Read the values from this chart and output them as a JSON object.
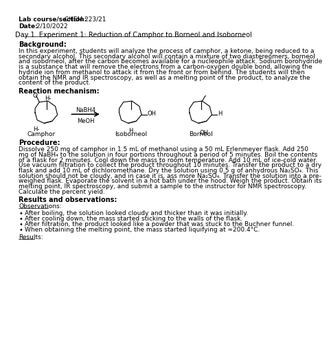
{
  "background_color": "#ffffff",
  "header_bold_label1": "Lab course/section:",
  "header_value1": " CHEM 223/21",
  "header_bold_label2": "Date:",
  "header_value2": " 2/10/2022",
  "title": "Day 1. Experiment 1: Reduction of Camphor to Borneol and Isoborneol",
  "section_background": "Background:",
  "background_text": "In this experiment, students will analyze the process of camphor, a ketone, being reduced to a\nsecondary alcohol. This secondary alcohol will contain a mixture of two diastereomers, borneol\nand isoborneol, after the carbon becomes available for a nucleophile attack. Sodium borohydride\nis a substance that will remove the electrons from a carbon-oxygen double bond, allowing the\nhydride ion from methanol to attack it from the front or from behind. The students will then\nobtain the NMR and IR spectroscopy, as well as a melting point of the product, to analyze the\ncontent of the product.",
  "section_reaction": "Reaction mechanism:",
  "section_procedure": "Procedure:",
  "procedure_text": "Dissolve 250 mg of camphor in 1.5 mL of methanol using a 50 mL Erlenmeyer flask. Add 250\nmg of NaBH₄ to the solution in four portions throughout a period of 5 minutes. Boil the contents\nof a flask for 2 minutes. Cool down the mass to room temperature. Add 10 mL of ice-cold water.\nUse vacuum filtration to collect the product throughout 10 minutes. Transfer the product to a dry\nflask and add 10 mL of dichloromethane. Dry the solution using 0.5 g of anhydrous Na₂SO₄. This\nsolution should not be cloudy, and in case it is, ass more Na₂SO₄. Transfer the solution into a pre-\nweighed flask. Evaporate the solvent in a hot bath under the hood. Weigh the product. Obtain its\nmelting point, IR spectroscopy, and submit a sample to the instructor for NMR spectroscopy.\nCalculate the percent yield.",
  "section_results": "Results and observations:",
  "observations_label": "Observations:",
  "observations": [
    "After boiling, the solution looked cloudy and thicker than it was initially.",
    "After cooling down, the mass started sticking to the walls of the flask.",
    "After filtration, the product looked like a powder that was stuck to the Buchner funnel.",
    "When obtaining the melting point, the mass started liquifying at ≈200.4°C."
  ],
  "results_label": "Results:"
}
